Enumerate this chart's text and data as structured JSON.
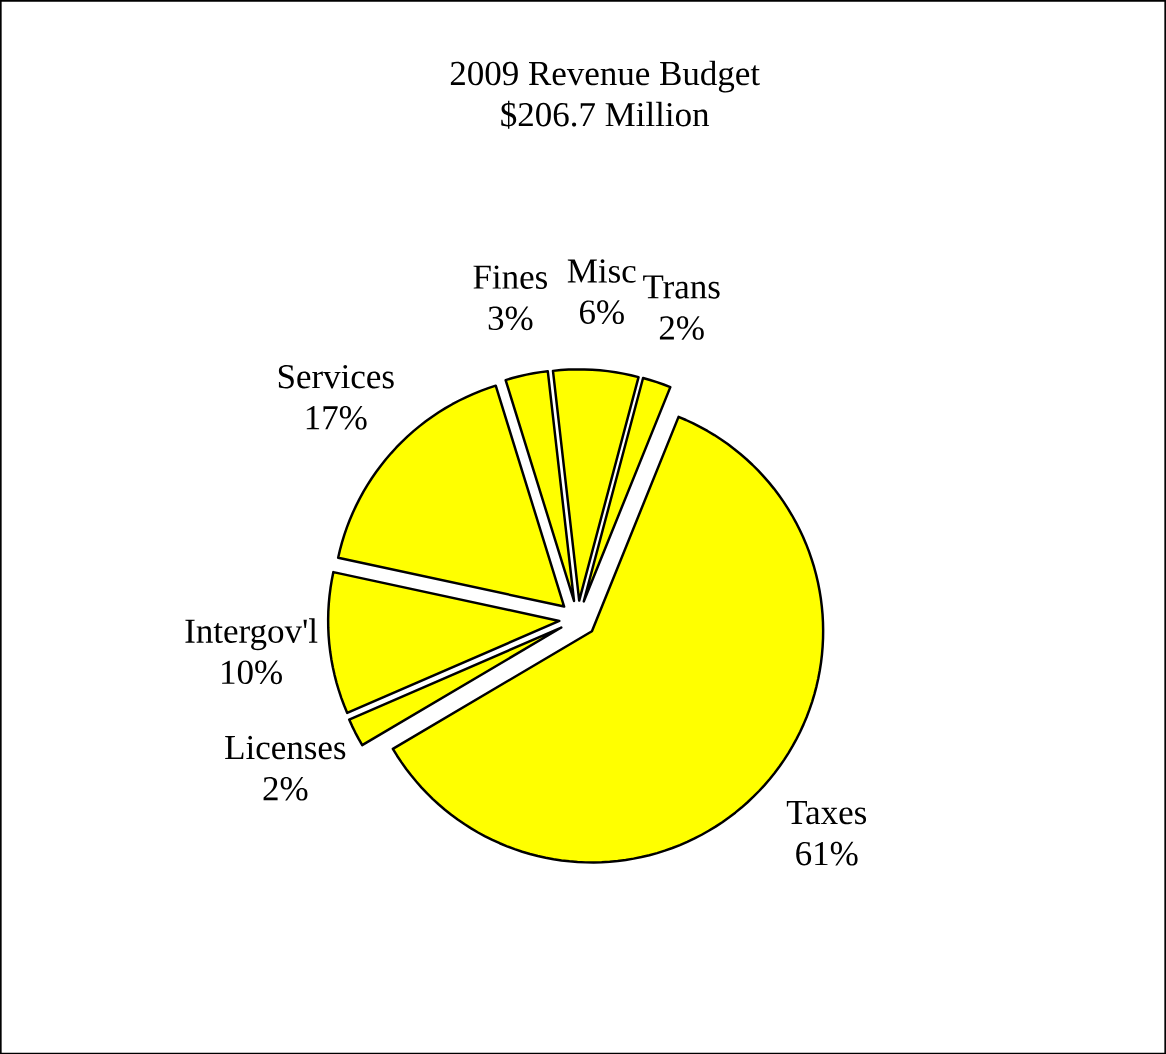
{
  "chart_data": {
    "type": "pie",
    "title": "2009 Revenue Budget",
    "subtitle": "$206.7 Million",
    "categories": [
      "Taxes",
      "Licenses",
      "Intergov'l",
      "Services",
      "Fines",
      "Misc",
      "Trans"
    ],
    "values": [
      61,
      2,
      10,
      17,
      3,
      6,
      2
    ],
    "value_labels": [
      "61%",
      "2%",
      "10%",
      "17%",
      "3%",
      "6%",
      "2%"
    ],
    "colors": [
      "#ffff00",
      "#ffff00",
      "#ffff00",
      "#ffff00",
      "#ffff00",
      "#ffff00",
      "#ffff00"
    ]
  }
}
